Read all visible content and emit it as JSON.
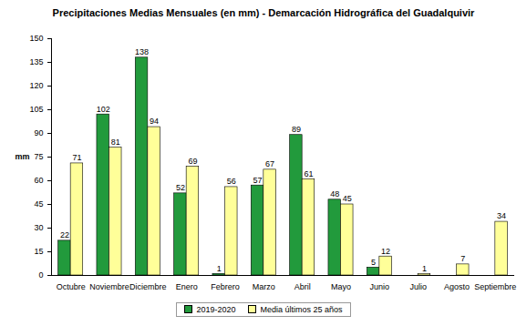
{
  "chart_data": {
    "type": "bar",
    "title": "Precipitaciones Medias Mensuales (en mm) - Demarcación Hidrográfica del Guadalquivir",
    "y_label": "mm",
    "categories": [
      "Octubre",
      "Noviembre",
      "Diciembre",
      "Enero",
      "Febrero",
      "Marzo",
      "Abril",
      "Mayo",
      "Junio",
      "Julio",
      "Agosto",
      "Septiembre"
    ],
    "series": [
      {
        "name": "2019-2020",
        "color": "#229a3c",
        "values": [
          22,
          102,
          138,
          52,
          1,
          57,
          89,
          48,
          5,
          null,
          null,
          null
        ]
      },
      {
        "name": "Media últimos 25 años",
        "color": "#ffff99",
        "values": [
          71,
          81,
          94,
          69,
          56,
          67,
          61,
          45,
          12,
          1,
          7,
          34
        ]
      }
    ],
    "ylim": [
      0,
      150
    ],
    "yticks": [
      0,
      15,
      30,
      45,
      60,
      75,
      90,
      105,
      120,
      135,
      150
    ],
    "grid": false,
    "data_labels": true,
    "legend": "bottom"
  }
}
